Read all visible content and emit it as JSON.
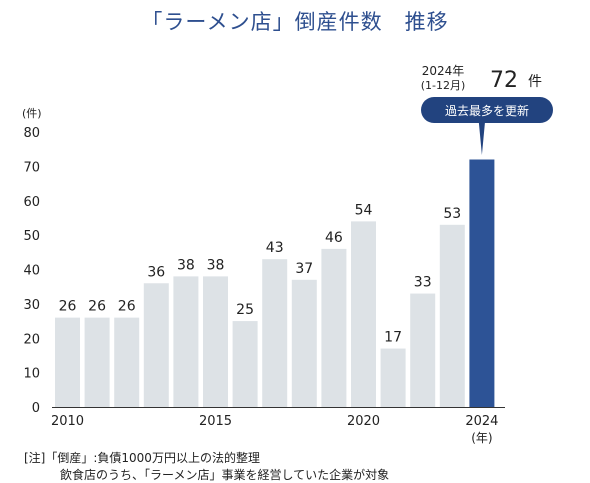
{
  "title": "「ラーメン店」倒産件数　推移",
  "chart_data": {
    "type": "bar",
    "categories": [
      "2010",
      "2011",
      "2012",
      "2013",
      "2014",
      "2015",
      "2016",
      "2017",
      "2018",
      "2019",
      "2020",
      "2021",
      "2022",
      "2023",
      "2024"
    ],
    "values": [
      26,
      26,
      26,
      36,
      38,
      38,
      25,
      43,
      37,
      46,
      54,
      17,
      33,
      53,
      72
    ],
    "x_tick_labels": [
      "2010",
      "2015",
      "2020",
      "2024"
    ],
    "x_unit": "(年)",
    "y_unit": "(件)",
    "ylim": [
      0,
      80
    ],
    "y_ticks": [
      0,
      10,
      20,
      30,
      40,
      50,
      60,
      70,
      80
    ],
    "grid": false,
    "bar_color": "#dde2e6",
    "highlight_color": "#2d5396",
    "highlight_index": 14,
    "annotation": {
      "year_label": "2024年",
      "period_label": "(1-12月)",
      "value_label": "72",
      "value_unit": "件",
      "badge_text": "過去最多を更新"
    }
  },
  "notes": {
    "line1": "[注]「倒産」:負債1000万円以上の法的整理",
    "line2": "飲食店のうち、「ラーメン店」事業を経営していた企業が対象"
  }
}
